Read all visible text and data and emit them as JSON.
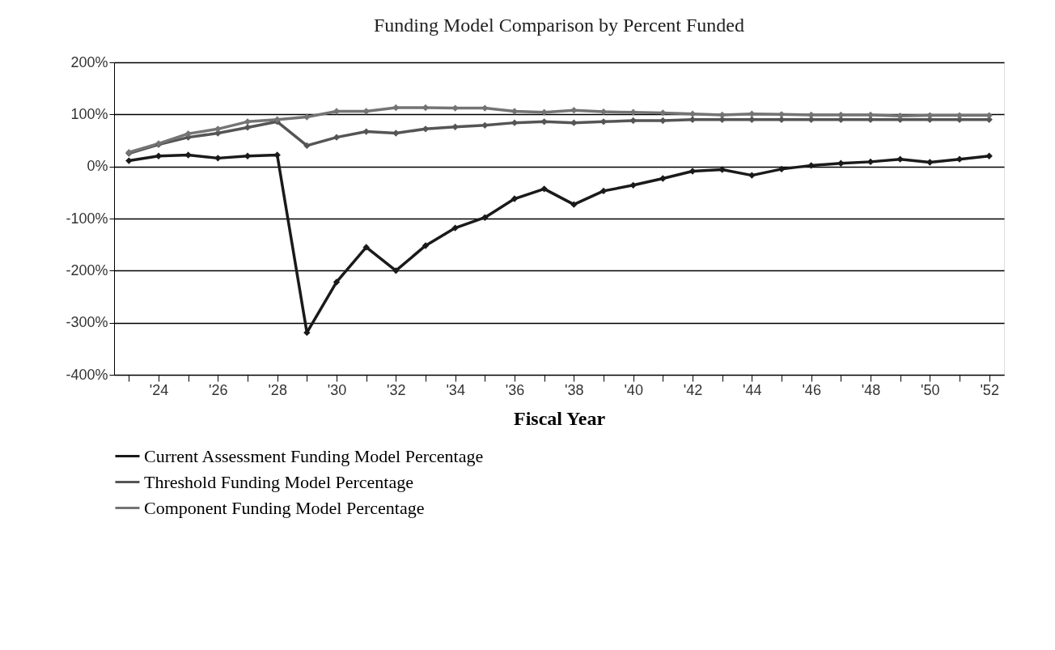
{
  "chart_data": {
    "type": "line",
    "title": "Funding Model Comparison by Percent Funded",
    "xlabel": "Fiscal Year",
    "categories": [
      null,
      "'24",
      null,
      "'26",
      null,
      "'28",
      null,
      "'30",
      null,
      "'32",
      null,
      "'34",
      null,
      "'36",
      null,
      "'38",
      null,
      "'40",
      null,
      "'42",
      null,
      "'44",
      null,
      "'46",
      null,
      "'48",
      null,
      "'50",
      null,
      "'52"
    ],
    "series": [
      {
        "name": "Current Assessment Funding Model Percentage",
        "color": "#1a1a1a",
        "values": [
          11,
          20,
          22,
          16,
          20,
          22,
          -319,
          -222,
          -155,
          -200,
          -152,
          -118,
          -98,
          -62,
          -43,
          -73,
          -47,
          -36,
          -23,
          -9,
          -6,
          -17,
          -5,
          2,
          6,
          9,
          14,
          8,
          14,
          20
        ]
      },
      {
        "name": "Threshold Funding Model Percentage",
        "color": "#555555",
        "values": [
          25,
          42,
          56,
          64,
          75,
          86,
          40,
          56,
          67,
          64,
          72,
          76,
          79,
          84,
          86,
          84,
          86,
          88,
          88,
          90,
          90,
          90,
          90,
          90,
          90,
          90,
          90,
          90,
          90,
          90
        ]
      },
      {
        "name": "Component Funding Model Percentage",
        "color": "#747474",
        "values": [
          27,
          44,
          63,
          72,
          86,
          90,
          95,
          106,
          106,
          113,
          113,
          112,
          112,
          106,
          104,
          108,
          105,
          104,
          103,
          101,
          99,
          101,
          100,
          99,
          99,
          99,
          97,
          98,
          98,
          98
        ]
      }
    ],
    "ylim": [
      -400,
      200
    ],
    "yticks": [
      {
        "value": -400,
        "label": "-400%"
      },
      {
        "value": -300,
        "label": "-300%"
      },
      {
        "value": -200,
        "label": "-200%"
      },
      {
        "value": -100,
        "label": "-100%"
      },
      {
        "value": 0,
        "label": "0%"
      },
      {
        "value": 100,
        "label": "100%"
      },
      {
        "value": 200,
        "label": "200%"
      }
    ],
    "grid": "y",
    "legend": "bottom",
    "marker": "diamond",
    "line_style": "solid"
  }
}
